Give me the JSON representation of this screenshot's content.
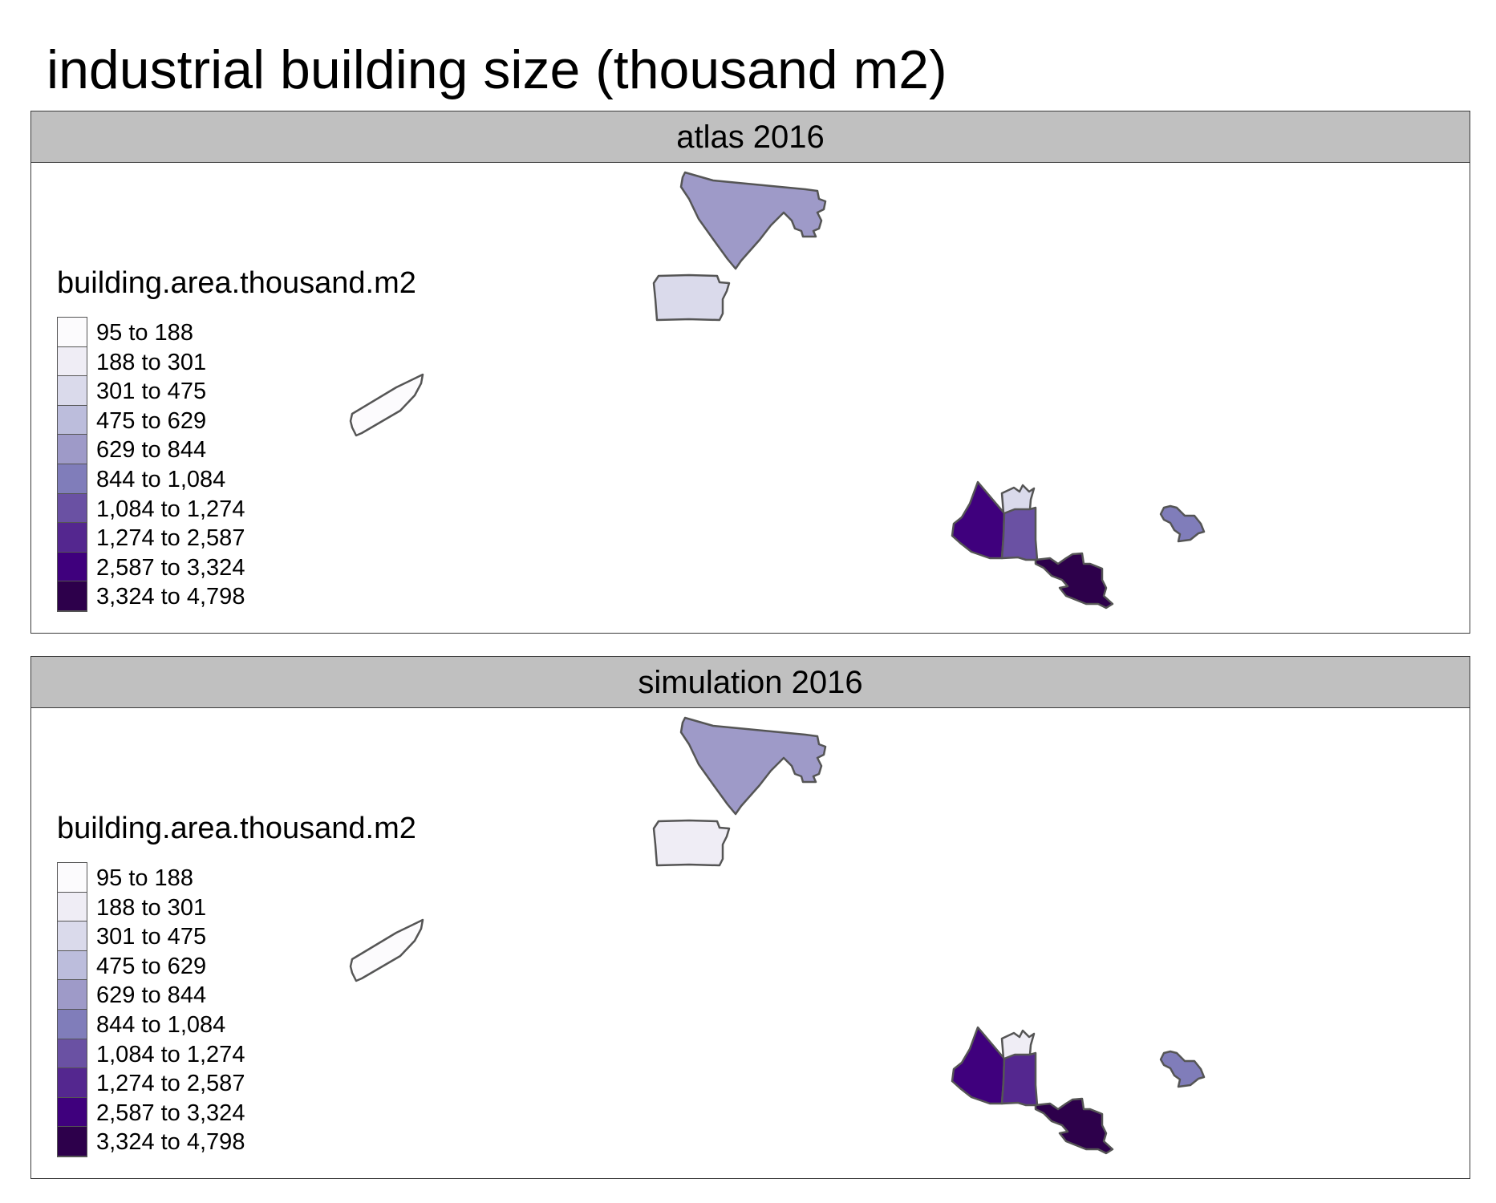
{
  "title": "industrial building size (thousand m2)",
  "legend": {
    "title": "building.area.thousand.m2",
    "classes": [
      {
        "label": "95 to 188",
        "color": "#fcfbfd"
      },
      {
        "label": "188 to 301",
        "color": "#efedf5"
      },
      {
        "label": "301 to 475",
        "color": "#dadaeb"
      },
      {
        "label": "475 to 629",
        "color": "#bcbddc"
      },
      {
        "label": "629 to 844",
        "color": "#9e9ac8"
      },
      {
        "label": "844 to 1,084",
        "color": "#807dba"
      },
      {
        "label": "1,084 to 1,274",
        "color": "#6a51a3"
      },
      {
        "label": "1,274 to 2,587",
        "color": "#54278f"
      },
      {
        "label": "2,587 to 3,324",
        "color": "#3f007d"
      },
      {
        "label": "3,324 to 4,798",
        "color": "#2d004b"
      }
    ]
  },
  "panels": [
    {
      "label": "atlas 2016",
      "regions": [
        {
          "name": "north-region",
          "class": 4
        },
        {
          "name": "northwest-region",
          "class": 2
        },
        {
          "name": "west-strip-region",
          "class": 0
        },
        {
          "name": "south-tall-region",
          "class": 2
        },
        {
          "name": "south-west-region",
          "class": 8
        },
        {
          "name": "south-center-region",
          "class": 6
        },
        {
          "name": "south-tail-region",
          "class": 9
        },
        {
          "name": "east-small-region",
          "class": 5
        }
      ]
    },
    {
      "label": "simulation 2016",
      "regions": [
        {
          "name": "north-region",
          "class": 4
        },
        {
          "name": "northwest-region",
          "class": 1
        },
        {
          "name": "west-strip-region",
          "class": 0
        },
        {
          "name": "south-tall-region",
          "class": 1
        },
        {
          "name": "south-west-region",
          "class": 8
        },
        {
          "name": "south-center-region",
          "class": 7
        },
        {
          "name": "south-tail-region",
          "class": 9
        },
        {
          "name": "east-small-region",
          "class": 5
        }
      ]
    }
  ]
}
